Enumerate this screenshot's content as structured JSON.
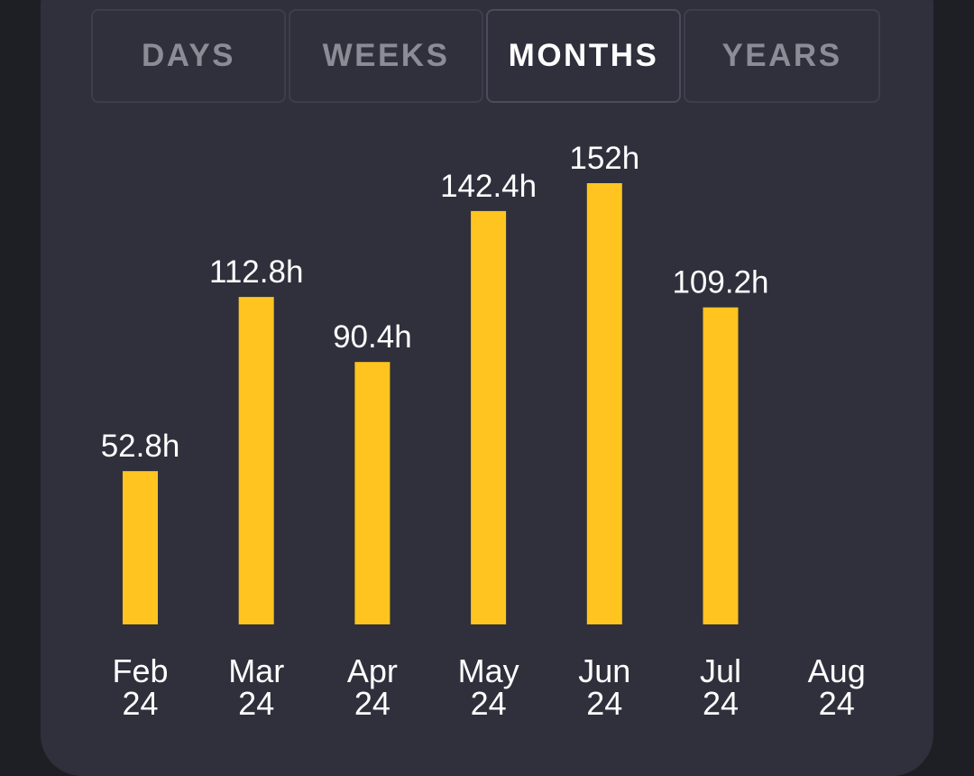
{
  "tabs": [
    {
      "label": "DAYS",
      "active": false
    },
    {
      "label": "WEEKS",
      "active": false
    },
    {
      "label": "MONTHS",
      "active": true
    },
    {
      "label": "YEARS",
      "active": false
    }
  ],
  "colors": {
    "bar": "#ffc420",
    "background": "#1e1f25",
    "card": "#2f303c",
    "text": "#ffffff"
  },
  "chart_data": {
    "type": "bar",
    "categories": [
      "Feb 24",
      "Mar 24",
      "Apr 24",
      "May 24",
      "Jun 24",
      "Jul 24",
      "Aug 24"
    ],
    "category_lines": [
      [
        "Feb",
        "24"
      ],
      [
        "Mar",
        "24"
      ],
      [
        "Apr",
        "24"
      ],
      [
        "May",
        "24"
      ],
      [
        "Jun",
        "24"
      ],
      [
        "Jul",
        "24"
      ],
      [
        "Aug",
        "24"
      ]
    ],
    "values": [
      52.8,
      112.8,
      90.4,
      142.4,
      152,
      109.2,
      null
    ],
    "value_labels": [
      "52.8h",
      "112.8h",
      "90.4h",
      "142.4h",
      "152h",
      "109.2h",
      ""
    ],
    "unit": "h",
    "title": "",
    "xlabel": "",
    "ylabel": "",
    "ylim": [
      0,
      152
    ],
    "grid": false
  }
}
